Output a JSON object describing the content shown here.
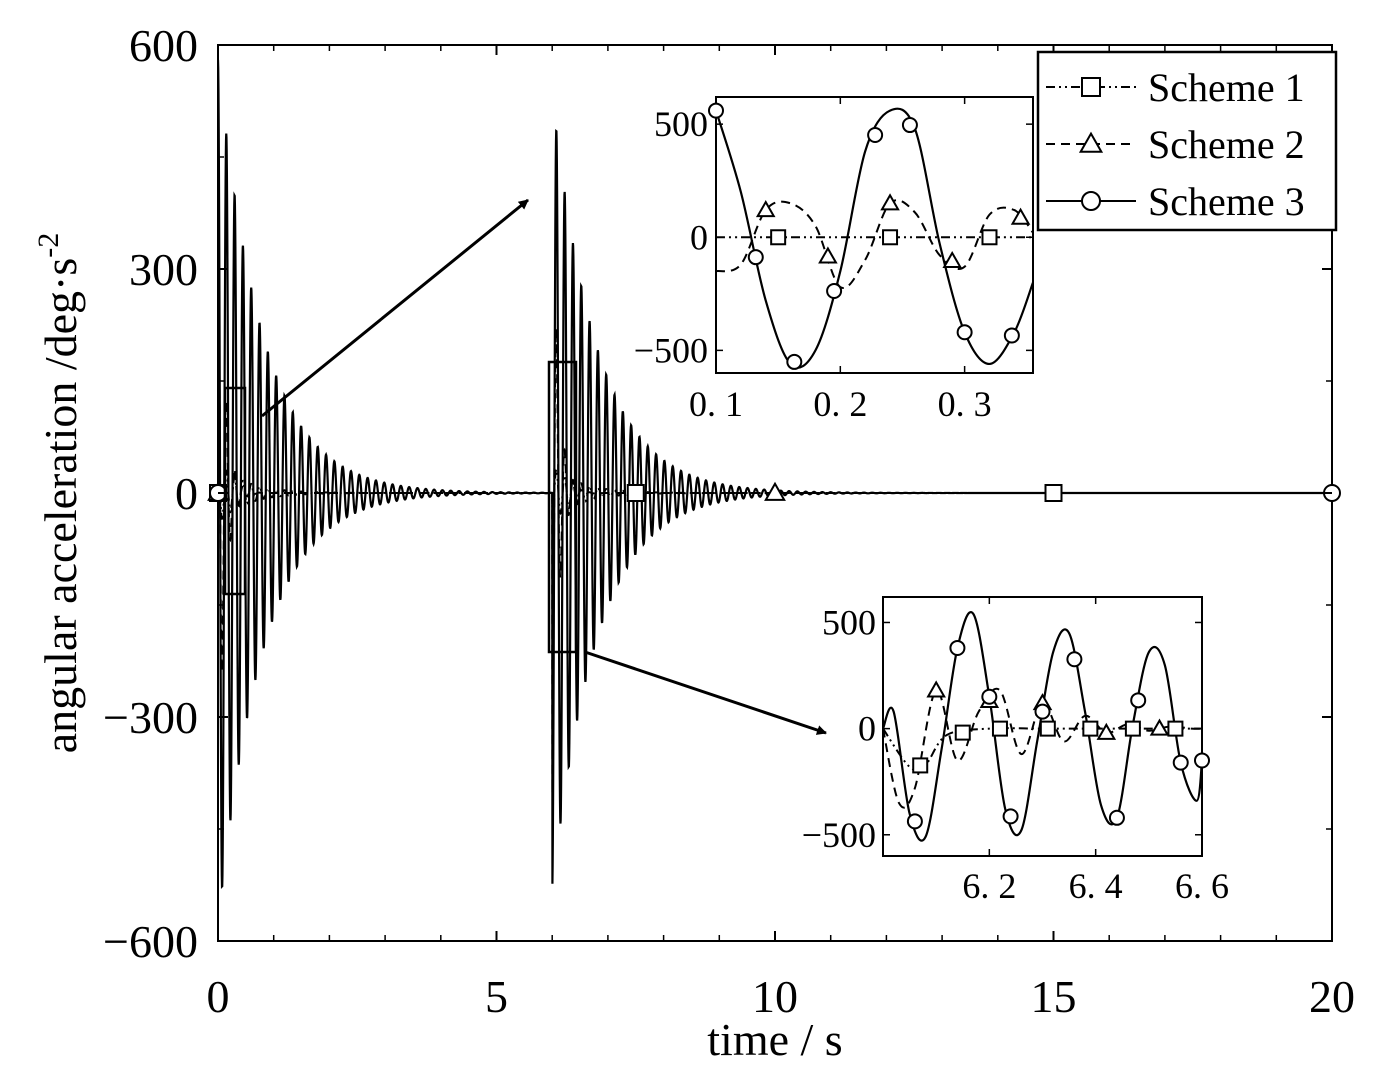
{
  "chart_data": [
    {
      "type": "line",
      "role": "main",
      "title": "",
      "xlabel": "time / s",
      "ylabel": "angular acceleration /deg·s",
      "ylabel_exponent": "-2",
      "xlim": [
        0,
        20
      ],
      "ylim": [
        -600,
        600
      ],
      "x_ticks": [
        0,
        5,
        10,
        15,
        20
      ],
      "x_tick_labels": [
        "0",
        "5",
        "10",
        "15",
        "20"
      ],
      "y_ticks": [
        -600,
        -300,
        0,
        300,
        600
      ],
      "y_tick_labels": [
        "−600",
        "−300",
        "0",
        "300",
        "600"
      ],
      "grid": false,
      "legend_position": "top-right",
      "excitations_start_s": [
        0,
        6
      ],
      "series": [
        {
          "name": "Scheme 1",
          "line_style": "dash-dot-dot",
          "marker": "square",
          "peak_amplitude": 40,
          "frequency_hz": 6.7,
          "decay_per_s": 2.0,
          "markers_at": [
            {
              "x": 0,
              "y": 0
            },
            {
              "x": 7.5,
              "y": 0
            },
            {
              "x": 15,
              "y": 0
            }
          ]
        },
        {
          "name": "Scheme 2",
          "line_style": "dashed",
          "marker": "triangle",
          "peak_amplitude": 460,
          "frequency_hz": 6.7,
          "decay_per_s": 9.0,
          "markers_at": [
            {
              "x": 0,
              "y": 0
            },
            {
              "x": 10,
              "y": 0
            }
          ]
        },
        {
          "name": "Scheme 3",
          "line_style": "solid",
          "marker": "circle",
          "peak_amplitude": 580,
          "frequency_hz": 6.7,
          "decay_per_s": 1.25,
          "markers_at": [
            {
              "x": 0,
              "y": 0
            },
            {
              "x": 20,
              "y": 0
            }
          ]
        }
      ]
    },
    {
      "type": "line",
      "role": "inset-1",
      "zoom_of_x": [
        0.1,
        0.35
      ],
      "zoom_of_y": [
        -150,
        140
      ],
      "xlim": [
        0.1,
        0.355
      ],
      "ylim": [
        -600,
        620
      ],
      "x_ticks": [
        0.1,
        0.2,
        0.3
      ],
      "x_tick_labels": [
        "0. 1",
        "0. 2",
        "0. 3"
      ],
      "y_ticks": [
        -500,
        0,
        500
      ],
      "y_tick_labels": [
        "−500",
        "0",
        "500"
      ],
      "series": [
        {
          "name": "Scheme 1",
          "x": [
            0.1,
            0.12,
            0.14,
            0.16,
            0.18,
            0.2,
            0.22,
            0.24,
            0.26,
            0.28,
            0.3,
            0.32,
            0.355
          ],
          "y": [
            0,
            0,
            0,
            0,
            0,
            0,
            0,
            0,
            0,
            0,
            0,
            0,
            0
          ],
          "markers_x": [
            0.15,
            0.24,
            0.32
          ]
        },
        {
          "name": "Scheme 2",
          "x": [
            0.1,
            0.12,
            0.14,
            0.16,
            0.18,
            0.2,
            0.22,
            0.24,
            0.26,
            0.28,
            0.3,
            0.32,
            0.34,
            0.355
          ],
          "y": [
            -150,
            -120,
            120,
            150,
            50,
            -220,
            -100,
            150,
            110,
            -80,
            -130,
            100,
            120,
            20
          ],
          "markers_x": [
            0.14,
            0.19,
            0.24,
            0.29,
            0.345
          ]
        },
        {
          "name": "Scheme 3",
          "x": [
            0.1,
            0.12,
            0.14,
            0.16,
            0.18,
            0.2,
            0.22,
            0.24,
            0.26,
            0.28,
            0.3,
            0.32,
            0.34,
            0.355
          ],
          "y": [
            560,
            200,
            -280,
            -560,
            -500,
            -150,
            380,
            560,
            480,
            -30,
            -420,
            -560,
            -420,
            -200
          ],
          "markers_x": [
            0.1,
            0.132,
            0.163,
            0.195,
            0.228,
            0.256,
            0.3,
            0.338
          ]
        }
      ]
    },
    {
      "type": "line",
      "role": "inset-2",
      "zoom_of_x": [
        6.0,
        6.6
      ],
      "zoom_of_y": [
        -210,
        180
      ],
      "xlim": [
        6.0,
        6.6
      ],
      "ylim": [
        -600,
        620
      ],
      "x_ticks": [
        6.2,
        6.4,
        6.6
      ],
      "x_tick_labels": [
        "6. 2",
        "6. 4",
        "6. 6"
      ],
      "y_ticks": [
        -500,
        0,
        500
      ],
      "y_tick_labels": [
        "−500",
        "0",
        "500"
      ],
      "series": [
        {
          "name": "Scheme 1",
          "x": [
            6.0,
            6.05,
            6.08,
            6.12,
            6.2,
            6.3,
            6.4,
            6.5,
            6.6
          ],
          "y": [
            0,
            -180,
            -170,
            -30,
            0,
            0,
            0,
            0,
            0
          ],
          "markers_x": [
            6.07,
            6.15,
            6.22,
            6.31,
            6.39,
            6.47,
            6.55
          ]
        },
        {
          "name": "Scheme 2",
          "x": [
            6.0,
            6.03,
            6.06,
            6.1,
            6.14,
            6.18,
            6.22,
            6.26,
            6.3,
            6.34,
            6.38,
            6.42,
            6.46,
            6.5,
            6.54,
            6.58,
            6.6
          ],
          "y": [
            0,
            -350,
            -280,
            180,
            -150,
            80,
            180,
            -120,
            120,
            -60,
            60,
            -20,
            20,
            -10,
            10,
            0,
            0
          ],
          "markers_x": [
            6.1,
            6.2,
            6.3,
            6.42,
            6.52
          ]
        },
        {
          "name": "Scheme 3",
          "x": [
            6.0,
            6.02,
            6.05,
            6.08,
            6.11,
            6.14,
            6.17,
            6.2,
            6.23,
            6.26,
            6.29,
            6.32,
            6.35,
            6.38,
            6.41,
            6.44,
            6.47,
            6.5,
            6.53,
            6.56,
            6.59,
            6.6
          ],
          "y": [
            0,
            80,
            -400,
            -510,
            -100,
            380,
            540,
            150,
            -380,
            -480,
            -60,
            360,
            450,
            80,
            -360,
            -420,
            20,
            360,
            300,
            -160,
            -340,
            -150
          ],
          "markers_x": [
            6.06,
            6.14,
            6.2,
            6.24,
            6.3,
            6.36,
            6.44,
            6.48,
            6.56,
            6.6
          ]
        }
      ]
    }
  ]
}
